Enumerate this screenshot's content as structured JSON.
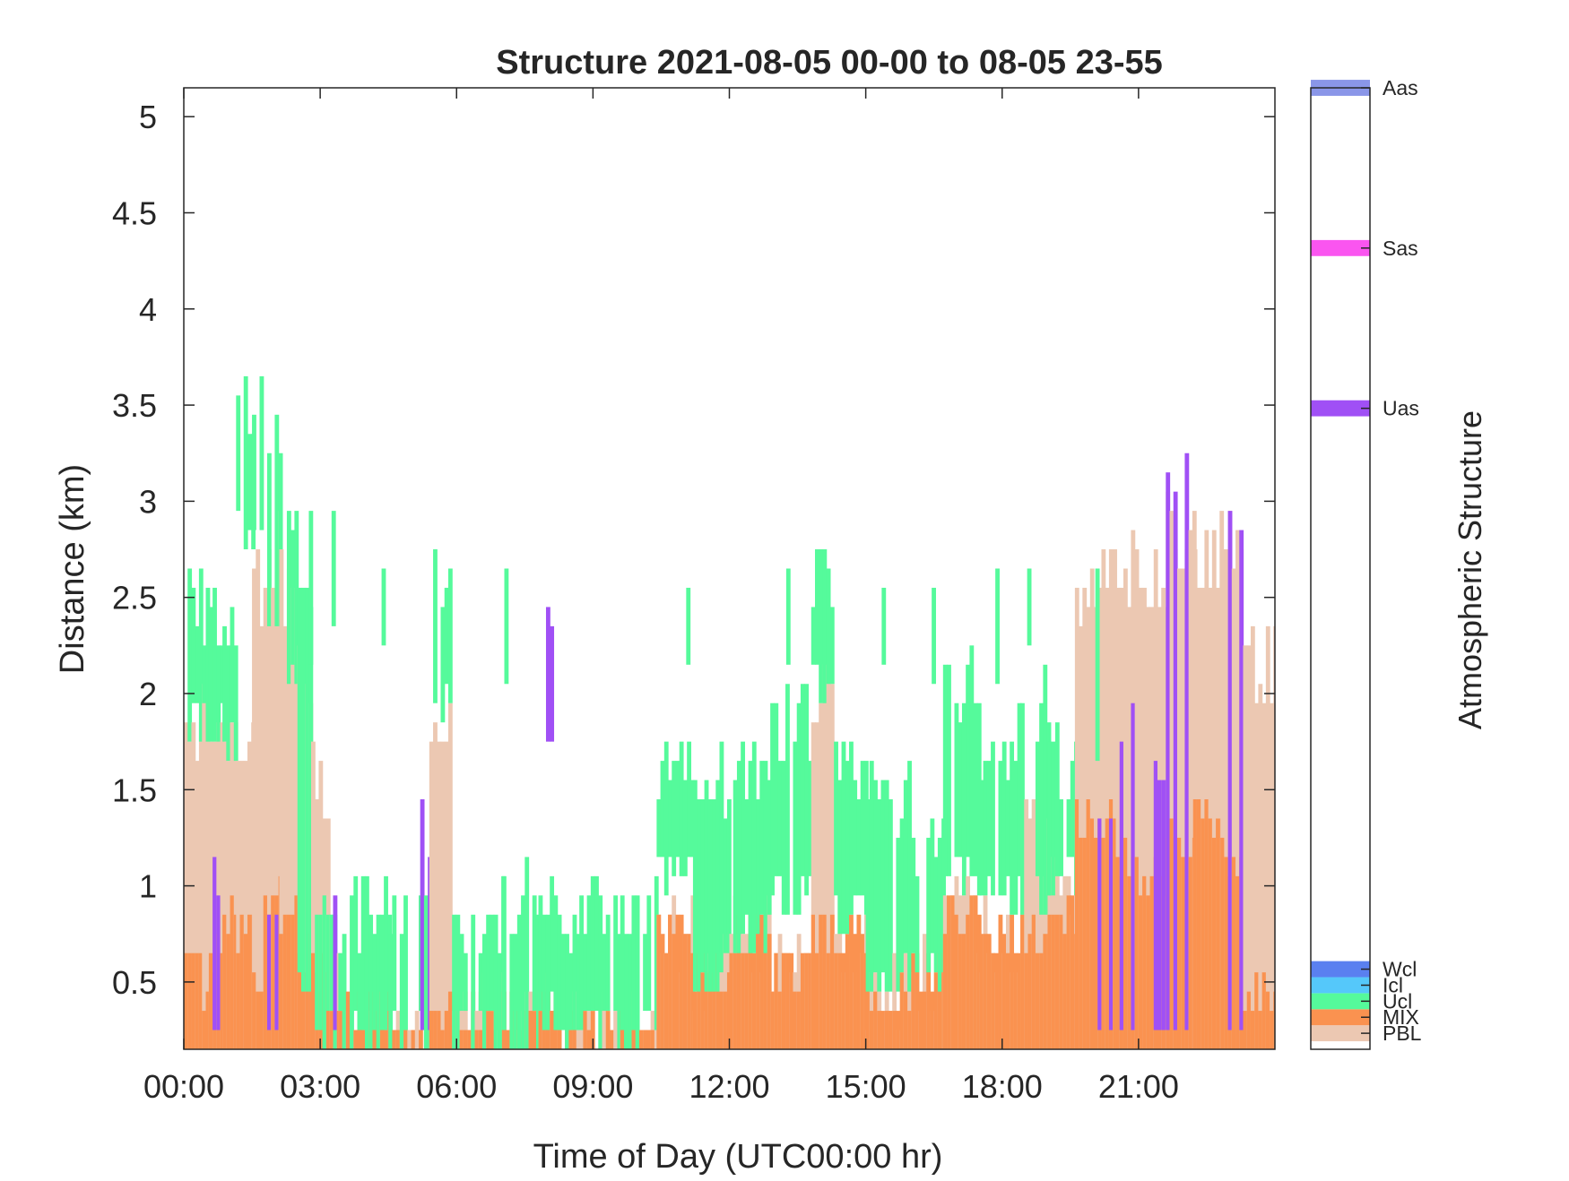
{
  "chart_data": {
    "type": "heatmap",
    "title": "Structure 2021-08-05 00-00 to 08-05 23-55",
    "xlabel": "Time of Day (UTC00:00 hr)",
    "ylabel": "Distance (km)",
    "xlim": [
      0,
      24
    ],
    "ylim": [
      0.15,
      5.15
    ],
    "x_ticks": [
      {
        "value": 0,
        "label": "00:00"
      },
      {
        "value": 3,
        "label": "03:00"
      },
      {
        "value": 6,
        "label": "06:00"
      },
      {
        "value": 9,
        "label": "09:00"
      },
      {
        "value": 12,
        "label": "12:00"
      },
      {
        "value": 15,
        "label": "15:00"
      },
      {
        "value": 18,
        "label": "18:00"
      },
      {
        "value": 21,
        "label": "21:00"
      }
    ],
    "y_ticks": [
      {
        "value": 0.5,
        "label": "0.5"
      },
      {
        "value": 1,
        "label": "1"
      },
      {
        "value": 1.5,
        "label": "1.5"
      },
      {
        "value": 2,
        "label": "2"
      },
      {
        "value": 2.5,
        "label": "2.5"
      },
      {
        "value": 3,
        "label": "3"
      },
      {
        "value": 3.5,
        "label": "3.5"
      },
      {
        "value": 4,
        "label": "4"
      },
      {
        "value": 4.5,
        "label": "4.5"
      },
      {
        "value": 5,
        "label": "5"
      }
    ],
    "grid": false,
    "legend": "right",
    "colorbar": {
      "label": "Atmospheric Structure",
      "categories": [
        {
          "label": "PBL",
          "color": "#ecc8b2",
          "value": 1
        },
        {
          "label": "MIX",
          "color": "#fa9250",
          "value": 2
        },
        {
          "label": "Ucl",
          "color": "#55fa9b",
          "value": 3
        },
        {
          "label": "Icl",
          "color": "#55c8fa",
          "value": 4
        },
        {
          "label": "Wcl",
          "color": "#5a80f0",
          "value": 5
        },
        {
          "label": "Uas",
          "color": "#a050f5",
          "value": 40
        },
        {
          "label": "Sas",
          "color": "#fa55f0",
          "value": 50
        },
        {
          "label": "Aas",
          "color": "#8a96e8",
          "value": 60
        }
      ],
      "range": [
        0,
        60
      ]
    },
    "columns": [
      {
        "t0": 0.0,
        "t1": 0.4,
        "pbl": 1.85,
        "mix": 0.65,
        "ucl": [
          1.85,
          2.45
        ]
      },
      {
        "t0": 0.4,
        "t1": 0.55,
        "pbl": 1.85,
        "mix": 0.45,
        "ucl": [
          1.85,
          2.35
        ],
        "uas": [
          0.25,
          1.45
        ]
      },
      {
        "t0": 0.55,
        "t1": 0.85,
        "pbl": 1.85,
        "mix": 0.65,
        "ucl": [
          1.85,
          2.35
        ],
        "uas": [
          0.25,
          1.15
        ]
      },
      {
        "t0": 0.85,
        "t1": 1.15,
        "pbl": 1.75,
        "mix": 0.85,
        "ucl": [
          1.75,
          2.35
        ]
      },
      {
        "t0": 1.15,
        "t1": 1.5,
        "pbl": 1.75,
        "mix": 0.75,
        "ucl": [
          2.85,
          3.45
        ]
      },
      {
        "t0": 1.5,
        "t1": 1.75,
        "pbl": 2.55,
        "mix": 0.55,
        "ucl": [
          2.75,
          3.55
        ]
      },
      {
        "t0": 1.75,
        "t1": 2.1,
        "pbl": 2.75,
        "mix": 0.95,
        "ucl": [
          2.45,
          3.35
        ],
        "uas": [
          0.25,
          0.95
        ]
      },
      {
        "t0": 2.1,
        "t1": 2.5,
        "pbl": 2.55,
        "mix": 0.85,
        "ucl": [
          2.05,
          2.75
        ]
      },
      {
        "t0": 2.5,
        "t1": 2.8,
        "pbl": 2.05,
        "mix": 0.65,
        "ucl": [
          0.45,
          2.45
        ]
      },
      {
        "t0": 2.8,
        "t1": 3.2,
        "pbl": 1.55,
        "mix": 0.55,
        "ucl": [
          0.25,
          0.95
        ]
      },
      {
        "t0": 3.2,
        "t1": 3.4,
        "pbl": 0.65,
        "mix": 0.35,
        "ucl": [
          0.25,
          0.95
        ],
        "uas": [
          0.25,
          0.95
        ]
      },
      {
        "t0": 3.4,
        "t1": 4.5,
        "pbl": 0.25,
        "mix": 0.35,
        "ucl": [
          0.25,
          0.85
        ]
      },
      {
        "t0": 4.5,
        "t1": 5.2,
        "pbl": 0.25,
        "mix": 0.25,
        "ucl": [
          0.25,
          0.85
        ]
      },
      {
        "t0": 5.2,
        "t1": 5.4,
        "pbl": 0.25,
        "mix": 0.25,
        "ucl": [
          0.25,
          0.85
        ],
        "uas": [
          0.25,
          1.25
        ]
      },
      {
        "t0": 5.4,
        "t1": 5.9,
        "pbl": 1.95,
        "mix": 0.35,
        "ucl": [
          1.95,
          2.55
        ]
      },
      {
        "t0": 5.9,
        "t1": 6.4,
        "pbl": 0.35,
        "mix": 0.35,
        "ucl": [
          0.25,
          0.85
        ]
      },
      {
        "t0": 6.4,
        "t1": 7.0,
        "pbl": 0.35,
        "mix": 0.25,
        "ucl": [
          0.25,
          0.85
        ]
      },
      {
        "t0": 7.0,
        "t1": 7.8,
        "pbl": 0.35,
        "mix": 0.35,
        "ucl": [
          0.25,
          0.95
        ]
      },
      {
        "t0": 7.8,
        "t1": 8.3,
        "pbl": 0.35,
        "mix": 0.35,
        "ucl": [
          0.35,
          0.95
        ],
        "uas": [
          1.75,
          2.35
        ]
      },
      {
        "t0": 8.3,
        "t1": 8.7,
        "pbl": 0.35,
        "mix": 0.25,
        "ucl": [
          0.25,
          0.85
        ]
      },
      {
        "t0": 8.7,
        "t1": 9.6,
        "pbl": 0.25,
        "mix": 0.25,
        "ucl": [
          0.25,
          0.85
        ]
      },
      {
        "t0": 9.6,
        "t1": 10.4,
        "pbl": 0.25,
        "mix": 0.25,
        "ucl": [
          0.25,
          0.85
        ]
      },
      {
        "t0": 10.4,
        "t1": 11.2,
        "pbl": 0.75,
        "mix": 0.75,
        "ucl": [
          1.05,
          1.65
        ]
      },
      {
        "t0": 11.2,
        "t1": 12.0,
        "pbl": 0.55,
        "mix": 0.55,
        "ucl": [
          0.55,
          1.55
        ]
      },
      {
        "t0": 12.0,
        "t1": 12.9,
        "pbl": 0.75,
        "mix": 0.75,
        "ucl": [
          0.75,
          1.65
        ]
      },
      {
        "t0": 12.9,
        "t1": 13.8,
        "pbl": 0.65,
        "mix": 0.55,
        "ucl": [
          0.95,
          1.85
        ]
      },
      {
        "t0": 13.8,
        "t1": 14.3,
        "pbl": 2.05,
        "mix": 0.75,
        "ucl": [
          2.05,
          2.65
        ]
      },
      {
        "t0": 14.3,
        "t1": 15.0,
        "pbl": 0.75,
        "mix": 0.75,
        "ucl": [
          0.85,
          1.55
        ]
      },
      {
        "t0": 15.0,
        "t1": 16.0,
        "pbl": 0.45,
        "mix": 0.45,
        "ucl": [
          0.55,
          1.45
        ]
      },
      {
        "t0": 16.0,
        "t1": 16.7,
        "pbl": 0.55,
        "mix": 0.55,
        "ucl": [
          0.55,
          1.25
        ]
      },
      {
        "t0": 16.7,
        "t1": 17.5,
        "pbl": 0.85,
        "mix": 0.85,
        "ucl": [
          1.05,
          2.05
        ]
      },
      {
        "t0": 17.5,
        "t1": 18.4,
        "pbl": 0.75,
        "mix": 0.75,
        "ucl": [
          0.95,
          1.75
        ]
      },
      {
        "t0": 18.4,
        "t1": 19.0,
        "pbl": 1.25,
        "mix": 0.75,
        "ucl": [
          0.95,
          1.95
        ]
      },
      {
        "t0": 19.0,
        "t1": 19.6,
        "pbl": 1.05,
        "mix": 0.85,
        "ucl": [
          1.05,
          1.65
        ]
      },
      {
        "t0": 19.6,
        "t1": 20.5,
        "pbl": 2.55,
        "mix": 1.35,
        "uas": [
          0.25,
          1.45
        ]
      },
      {
        "t0": 20.5,
        "t1": 21.0,
        "pbl": 2.65,
        "mix": 1.15,
        "uas": [
          0.25,
          1.75
        ]
      },
      {
        "t0": 21.0,
        "t1": 21.6,
        "pbl": 2.55,
        "mix": 1.05,
        "uas": [
          0.25,
          1.55
        ]
      },
      {
        "t0": 21.6,
        "t1": 22.2,
        "pbl": 2.85,
        "mix": 1.25,
        "uas": [
          0.25,
          3.05
        ]
      },
      {
        "t0": 22.2,
        "t1": 22.8,
        "pbl": 2.75,
        "mix": 1.35
      },
      {
        "t0": 22.8,
        "t1": 23.3,
        "pbl": 2.75,
        "mix": 1.15,
        "uas": [
          0.25,
          3.05
        ]
      },
      {
        "t0": 23.3,
        "t1": 24.0,
        "pbl": 2.15,
        "mix": 0.45
      }
    ],
    "isolated_cloud_streaks": [
      {
        "t": 2.75,
        "range": [
          2.15,
          2.95
        ]
      },
      {
        "t": 3.25,
        "range": [
          2.35,
          2.95
        ]
      },
      {
        "t": 4.35,
        "range": [
          2.25,
          2.65
        ]
      },
      {
        "t": 7.05,
        "range": [
          2.05,
          2.65
        ]
      },
      {
        "t": 11.05,
        "range": [
          2.15,
          2.55
        ]
      },
      {
        "t": 13.25,
        "range": [
          2.15,
          2.65
        ]
      },
      {
        "t": 15.35,
        "range": [
          2.15,
          2.55
        ]
      },
      {
        "t": 16.45,
        "range": [
          2.05,
          2.55
        ]
      },
      {
        "t": 17.85,
        "range": [
          2.05,
          2.65
        ]
      },
      {
        "t": 18.55,
        "range": [
          2.25,
          2.65
        ]
      },
      {
        "t": 20.05,
        "range": [
          1.65,
          2.65
        ]
      }
    ]
  }
}
